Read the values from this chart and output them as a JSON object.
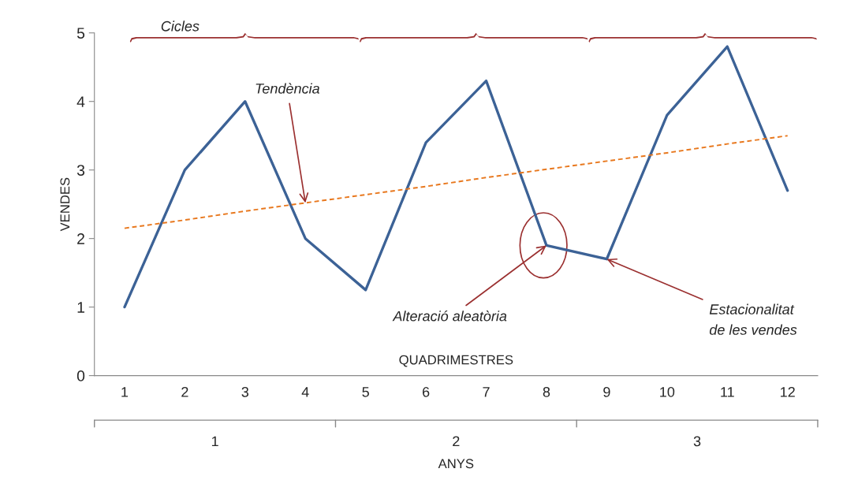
{
  "chart_data": {
    "type": "line",
    "ylabel": "VENDES",
    "xlabel": "QUADRIMESTRES",
    "categories": [
      "1",
      "2",
      "3",
      "4",
      "5",
      "6",
      "7",
      "8",
      "9",
      "10",
      "11",
      "12"
    ],
    "series": [
      {
        "color": "#3c6296",
        "line_style": "solid",
        "values": [
          1,
          3,
          4,
          2,
          1.25,
          3.4,
          4.3,
          1.9,
          1.7,
          3.8,
          4.8,
          2.7
        ]
      },
      {
        "color": "#e8781e",
        "line_style": "dashed",
        "values": [
          2.15,
          2.27,
          2.4,
          2.52,
          2.64,
          2.76,
          2.89,
          3.01,
          3.13,
          3.25,
          3.38,
          3.5
        ]
      }
    ],
    "ylim": [
      0,
      5
    ],
    "yticks": [
      0,
      1,
      2,
      3,
      4,
      5
    ],
    "annotations": [
      "Cicles",
      {
        "text": "Tendència",
        "x": "4",
        "y": 2.52
      },
      {
        "text": "Alteració aleatòria",
        "x": "8",
        "y": 1.9
      },
      {
        "text": "Estacionalitat\nde les vendes",
        "x": "9",
        "y": 1.7
      },
      "1",
      "2",
      "3",
      "ANYS"
    ]
  }
}
